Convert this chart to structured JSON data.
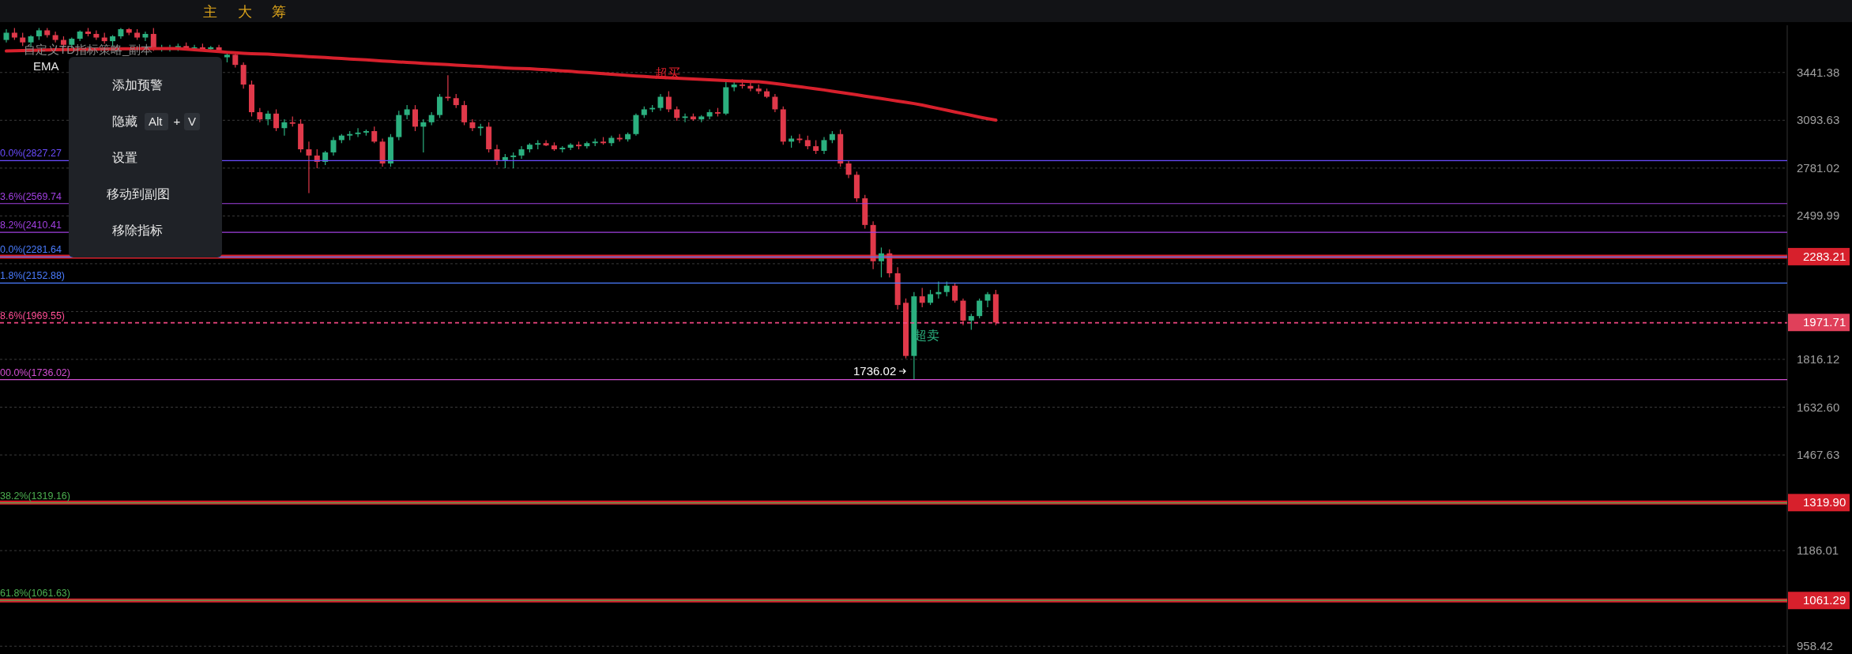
{
  "chart_data": {
    "type": "candlestick",
    "categories": [
      null,
      null,
      null,
      null,
      null,
      null,
      null,
      null,
      null,
      null,
      null,
      null,
      null,
      null,
      null,
      null,
      null,
      null,
      null,
      null,
      null,
      null,
      null,
      null,
      null,
      null,
      null,
      null,
      null,
      null,
      null,
      null,
      null,
      null,
      null,
      null,
      null,
      null,
      null,
      null,
      null,
      null,
      null,
      null,
      null,
      null,
      null,
      null,
      null,
      null,
      null,
      null,
      null,
      null,
      null,
      null,
      null,
      null,
      null,
      null,
      null,
      null,
      null,
      null,
      null,
      null,
      null,
      null,
      null,
      null,
      null,
      null,
      null,
      null,
      null,
      null,
      null,
      null,
      null,
      null,
      null,
      null,
      null,
      null,
      null,
      null,
      null,
      null,
      null,
      null,
      null,
      null,
      null,
      null,
      null,
      null,
      null,
      null,
      null,
      null,
      null,
      null,
      null,
      null,
      null,
      null,
      null,
      null,
      null,
      null,
      null,
      null,
      null,
      null,
      null,
      null,
      null,
      null,
      null,
      null,
      null,
      null
    ],
    "ohlc": [
      [
        3700,
        3790,
        3680,
        3760
      ],
      [
        3760,
        3800,
        3700,
        3720
      ],
      [
        3720,
        3760,
        3650,
        3680
      ],
      [
        3680,
        3740,
        3640,
        3730
      ],
      [
        3730,
        3800,
        3700,
        3780
      ],
      [
        3780,
        3800,
        3720,
        3740
      ],
      [
        3740,
        3770,
        3680,
        3700
      ],
      [
        3700,
        3730,
        3640,
        3660
      ],
      [
        3660,
        3720,
        3630,
        3710
      ],
      [
        3710,
        3780,
        3690,
        3770
      ],
      [
        3770,
        3800,
        3730,
        3750
      ],
      [
        3750,
        3780,
        3700,
        3720
      ],
      [
        3720,
        3760,
        3670,
        3690
      ],
      [
        3690,
        3740,
        3650,
        3730
      ],
      [
        3730,
        3800,
        3710,
        3790
      ],
      [
        3790,
        3800,
        3740,
        3760
      ],
      [
        3760,
        3790,
        3700,
        3720
      ],
      [
        3720,
        3770,
        3690,
        3750
      ],
      [
        3750,
        3800,
        3610,
        3620
      ],
      [
        3620,
        3660,
        3605,
        3630
      ],
      [
        3630,
        3660,
        3605,
        3640
      ],
      [
        3640,
        3670,
        3610,
        3650
      ],
      [
        3650,
        3680,
        3615,
        3630
      ],
      [
        3630,
        3660,
        3610,
        3640
      ],
      [
        3640,
        3670,
        3612,
        3625
      ],
      [
        3625,
        3650,
        3610,
        3640
      ],
      [
        3640,
        3660,
        3605,
        3615
      ],
      [
        3560,
        3600,
        3520,
        3580
      ],
      [
        3580,
        3590,
        3480,
        3500
      ],
      [
        3500,
        3520,
        3320,
        3350
      ],
      [
        3350,
        3380,
        3120,
        3150
      ],
      [
        3150,
        3180,
        3080,
        3100
      ],
      [
        3100,
        3160,
        3060,
        3140
      ],
      [
        3140,
        3170,
        3020,
        3040
      ],
      [
        3040,
        3100,
        2990,
        3080
      ],
      [
        3080,
        3120,
        3050,
        3070
      ],
      [
        3070,
        3100,
        2880,
        2900
      ],
      [
        2900,
        2950,
        2630,
        2860
      ],
      [
        2860,
        2900,
        2780,
        2820
      ],
      [
        2820,
        2890,
        2800,
        2880
      ],
      [
        2880,
        2980,
        2860,
        2960
      ],
      [
        2960,
        3000,
        2940,
        2990
      ],
      [
        2990,
        3020,
        2960,
        3000
      ],
      [
        3000,
        3040,
        2980,
        3010
      ],
      [
        3010,
        3030,
        2990,
        3020
      ],
      [
        3020,
        3050,
        2940,
        2950
      ],
      [
        2950,
        2970,
        2790,
        2810
      ],
      [
        2810,
        3000,
        2790,
        2980
      ],
      [
        2980,
        3160,
        2960,
        3130
      ],
      [
        3130,
        3200,
        3100,
        3170
      ],
      [
        3170,
        3200,
        3020,
        3050
      ],
      [
        3050,
        3100,
        2880,
        3080
      ],
      [
        3080,
        3150,
        3060,
        3130
      ],
      [
        3130,
        3280,
        3110,
        3260
      ],
      [
        3260,
        3420,
        3230,
        3250
      ],
      [
        3250,
        3280,
        3180,
        3200
      ],
      [
        3200,
        3230,
        3060,
        3080
      ],
      [
        3080,
        3100,
        3020,
        3040
      ],
      [
        3040,
        3070,
        2990,
        3050
      ],
      [
        3050,
        3080,
        2880,
        2900
      ],
      [
        2900,
        2930,
        2800,
        2830
      ],
      [
        2830,
        2870,
        2780,
        2850
      ],
      [
        2850,
        2880,
        2780,
        2860
      ],
      [
        2860,
        2920,
        2840,
        2900
      ],
      [
        2900,
        2940,
        2880,
        2930
      ],
      [
        2930,
        2960,
        2900,
        2940
      ],
      [
        2940,
        2960,
        2920,
        2925
      ],
      [
        2925,
        2945,
        2890,
        2900
      ],
      [
        2900,
        2920,
        2880,
        2910
      ],
      [
        2910,
        2940,
        2895,
        2930
      ],
      [
        2930,
        2950,
        2900,
        2920
      ],
      [
        2920,
        2950,
        2905,
        2940
      ],
      [
        2940,
        2970,
        2920,
        2950
      ],
      [
        2950,
        2980,
        2930,
        2940
      ],
      [
        2940,
        2990,
        2920,
        2975
      ],
      [
        2975,
        3000,
        2950,
        2965
      ],
      [
        2965,
        3010,
        2950,
        3000
      ],
      [
        3000,
        3140,
        2990,
        3130
      ],
      [
        3130,
        3190,
        3110,
        3170
      ],
      [
        3170,
        3200,
        3150,
        3180
      ],
      [
        3180,
        3280,
        3160,
        3260
      ],
      [
        3260,
        3300,
        3150,
        3170
      ],
      [
        3170,
        3190,
        3090,
        3110
      ],
      [
        3110,
        3140,
        3080,
        3120
      ],
      [
        3120,
        3140,
        3090,
        3100
      ],
      [
        3100,
        3130,
        3080,
        3120
      ],
      [
        3120,
        3170,
        3100,
        3150
      ],
      [
        3150,
        3180,
        3120,
        3140
      ],
      [
        3140,
        3370,
        3130,
        3330
      ],
      [
        3330,
        3380,
        3300,
        3350
      ],
      [
        3350,
        3390,
        3320,
        3340
      ],
      [
        3340,
        3370,
        3300,
        3320
      ],
      [
        3320,
        3350,
        3280,
        3300
      ],
      [
        3300,
        3320,
        3250,
        3260
      ],
      [
        3260,
        3280,
        3150,
        3170
      ],
      [
        3170,
        3190,
        2930,
        2950
      ],
      [
        2950,
        2990,
        2910,
        2970
      ],
      [
        2970,
        3000,
        2940,
        2960
      ],
      [
        2960,
        2990,
        2900,
        2920
      ],
      [
        2920,
        2960,
        2870,
        2890
      ],
      [
        2890,
        2980,
        2870,
        2960
      ],
      [
        2960,
        3020,
        2940,
        3000
      ],
      [
        3000,
        3030,
        2790,
        2810
      ],
      [
        2810,
        2830,
        2720,
        2740
      ],
      [
        2740,
        2760,
        2580,
        2600
      ],
      [
        2600,
        2620,
        2430,
        2450
      ],
      [
        2450,
        2470,
        2220,
        2260
      ],
      [
        2260,
        2330,
        2180,
        2300
      ],
      [
        2300,
        2320,
        2180,
        2200
      ],
      [
        2200,
        2230,
        2030,
        2050
      ],
      [
        2060,
        2080,
        1820,
        1830
      ],
      [
        1830,
        2110,
        1736.02,
        2090
      ],
      [
        2090,
        2130,
        2040,
        2060
      ],
      [
        2060,
        2120,
        2050,
        2100
      ],
      [
        2100,
        2160,
        2080,
        2110
      ],
      [
        2110,
        2160,
        2090,
        2140
      ],
      [
        2140,
        2150,
        2060,
        2070
      ],
      [
        2070,
        2080,
        1960,
        1980
      ],
      [
        1980,
        2010,
        1940,
        2000
      ],
      [
        2000,
        2080,
        1990,
        2070
      ],
      [
        2070,
        2110,
        2040,
        2100
      ],
      [
        2100,
        2120,
        1960,
        1971.71
      ]
    ],
    "series": [
      {
        "type": "line",
        "color": "#d7202c",
        "values": [
          3610,
          3612,
          3614,
          3615,
          3617,
          3618,
          3620,
          3621,
          3622,
          3623,
          3624,
          3625,
          3626,
          3627,
          3628,
          3628,
          3629,
          3629,
          3629,
          3629,
          3629,
          3629,
          3625,
          3620,
          3615,
          3610,
          3605,
          3600,
          3596,
          3592,
          3589,
          3587,
          3585,
          3581,
          3577,
          3573,
          3569,
          3565,
          3561,
          3558,
          3554,
          3550,
          3546,
          3543,
          3539,
          3535,
          3531,
          3527,
          3523,
          3520,
          3516,
          3512,
          3509,
          3505,
          3502,
          3498,
          3495,
          3491,
          3488,
          3484,
          3481,
          3477,
          3474,
          3472,
          3470,
          3466,
          3462,
          3458,
          3454,
          3450,
          3445,
          3441,
          3437,
          3432,
          3428,
          3424,
          3419,
          3415,
          3411,
          3407,
          3404,
          3401,
          3398,
          3395,
          3392,
          3389,
          3386,
          3383,
          3380,
          3377,
          3375,
          3373,
          3371,
          3365,
          3358,
          3350,
          3342,
          3334,
          3326,
          3318,
          3310,
          3301,
          3292,
          3283,
          3274,
          3265,
          3256,
          3247,
          3238,
          3229,
          3220,
          3211,
          3200,
          3188,
          3176,
          3164,
          3152,
          3140,
          3128,
          3116,
          3105,
          3095
        ]
      }
    ],
    "log": true,
    "ylim": [
      942,
      3823
    ],
    "yticks": [
      3441.38,
      3093.63,
      2781.02,
      2499.99,
      {
        "value": 2247.37,
        "label": null
      },
      {
        "value": 2020.27,
        "label": null
      },
      1816.12,
      {
        "value": 1632.6,
        "label": "1632.60"
      },
      1467.63,
      1186.01,
      958.42
    ],
    "grid": "y",
    "ref_lines": [
      {
        "axis": "y",
        "value": 2283.21,
        "label": "2283.21",
        "color": "#d7202c",
        "line_style": "solid"
      },
      {
        "axis": "y",
        "value": 1319.9,
        "label": "1319.90",
        "color": "#d7202c",
        "line_style": "solid"
      },
      {
        "axis": "y",
        "value": 1061.29,
        "label": "1061.29",
        "color": "#d7202c",
        "line_style": "solid"
      },
      {
        "axis": "y",
        "value": 1971.71,
        "label": "1971.71",
        "color": "#e0405a",
        "line_style": "dashed"
      },
      {
        "axis": "y",
        "value": 2827.27,
        "label": "0.0%(2827.27",
        "color": "#6a4cff",
        "line_style": "solid"
      },
      {
        "axis": "y",
        "value": 2569.74,
        "label": "3.6%(2569.74",
        "color": "#a040e0",
        "line_style": "solid"
      },
      {
        "axis": "y",
        "value": 2410.41,
        "label": "8.2%(2410.41",
        "color": "#a040e0",
        "line_style": "solid"
      },
      {
        "axis": "y",
        "value": 2281.64,
        "label": "0.0%(2281.64",
        "color": "#4a7cff",
        "line_style": "solid"
      },
      {
        "axis": "y",
        "value": 2152.88,
        "label": "1.8%(2152.88)",
        "color": "#4a7cff",
        "line_style": "solid"
      },
      {
        "axis": "y",
        "value": 1969.55,
        "label": "8.6%(1969.55)",
        "color": "#ff4d94",
        "line_style": "dashed"
      },
      {
        "axis": "y",
        "value": 1736.02,
        "label": "00.0%(1736.02)",
        "color": "#d34fd3",
        "line_style": "solid"
      },
      {
        "axis": "y",
        "value": 1319.16,
        "label": "38.2%(1319.16)",
        "color": "#4caf50",
        "line_style": "solid"
      },
      {
        "axis": "y",
        "value": 1061.63,
        "label": "61.8%(1061.63)",
        "color": "#4caf50",
        "line_style": "solid"
      }
    ],
    "annotations": [
      "主",
      "大",
      "筹",
      "自定义TD指标策略_副本",
      "EMA",
      "添加预警",
      "隐藏",
      "Alt",
      "+",
      "V",
      "设置",
      "移动到副图",
      "移除指标",
      "超买",
      "超卖",
      "1736.02"
    ]
  }
}
